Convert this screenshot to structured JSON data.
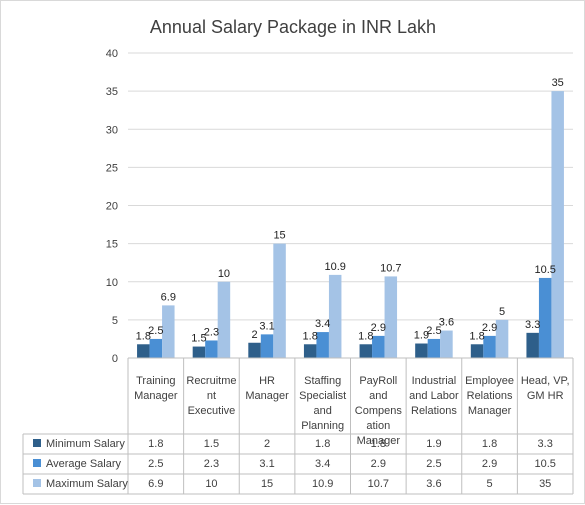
{
  "chart_data": {
    "type": "bar",
    "title": "Annual Salary Package in INR Lakh",
    "categories": [
      "Training Manager",
      "Recruitment Executive",
      "HR Manager",
      "Staffing Specialist and Planning",
      "PayRoll and Compensation Manager",
      "Industrial and Labor Relations",
      "Employee Relations Manager",
      "Head, VP, GM HR"
    ],
    "category_labels": [
      "Training\nManager",
      "Recruitme\nnt\nExecutive",
      "HR\nManager",
      "Staffing\nSpecialist\nand\nPlanning",
      "PayRoll\nand\nCompens\nation\nManager",
      "Industrial\nand Labor\nRelations",
      "Employee\nRelations\nManager",
      "Head, VP,\nGM HR"
    ],
    "series": [
      {
        "name": "Minimum Salary",
        "values": [
          1.8,
          1.5,
          2,
          1.8,
          1.8,
          1.9,
          1.8,
          3.3
        ],
        "labels": [
          "1.8",
          "1.5",
          "2",
          "1.8",
          "1.8",
          "1.9",
          "1.8",
          "3.3"
        ],
        "color": "#2e5f8a"
      },
      {
        "name": "Average Salary",
        "values": [
          2.5,
          2.3,
          3.1,
          3.4,
          2.9,
          2.5,
          2.9,
          10.5
        ],
        "labels": [
          "2.5",
          "2.3",
          "3.1",
          "3.4",
          "2.9",
          "2.5",
          "2.9",
          "10.5"
        ],
        "color": "#4a8fd4"
      },
      {
        "name": "Maximum Salary",
        "values": [
          6.9,
          10,
          15,
          10.9,
          10.7,
          3.6,
          5,
          35
        ],
        "labels": [
          "6.9",
          "10",
          "15",
          "10.9",
          "10.7",
          "3.6",
          "5",
          "35"
        ],
        "color": "#a4c3e6"
      }
    ],
    "ylim": [
      0,
      40
    ],
    "yticks": [
      "0",
      "5",
      "10",
      "15",
      "20",
      "25",
      "30",
      "35",
      "40"
    ],
    "grid": true,
    "legend": "data-table"
  }
}
